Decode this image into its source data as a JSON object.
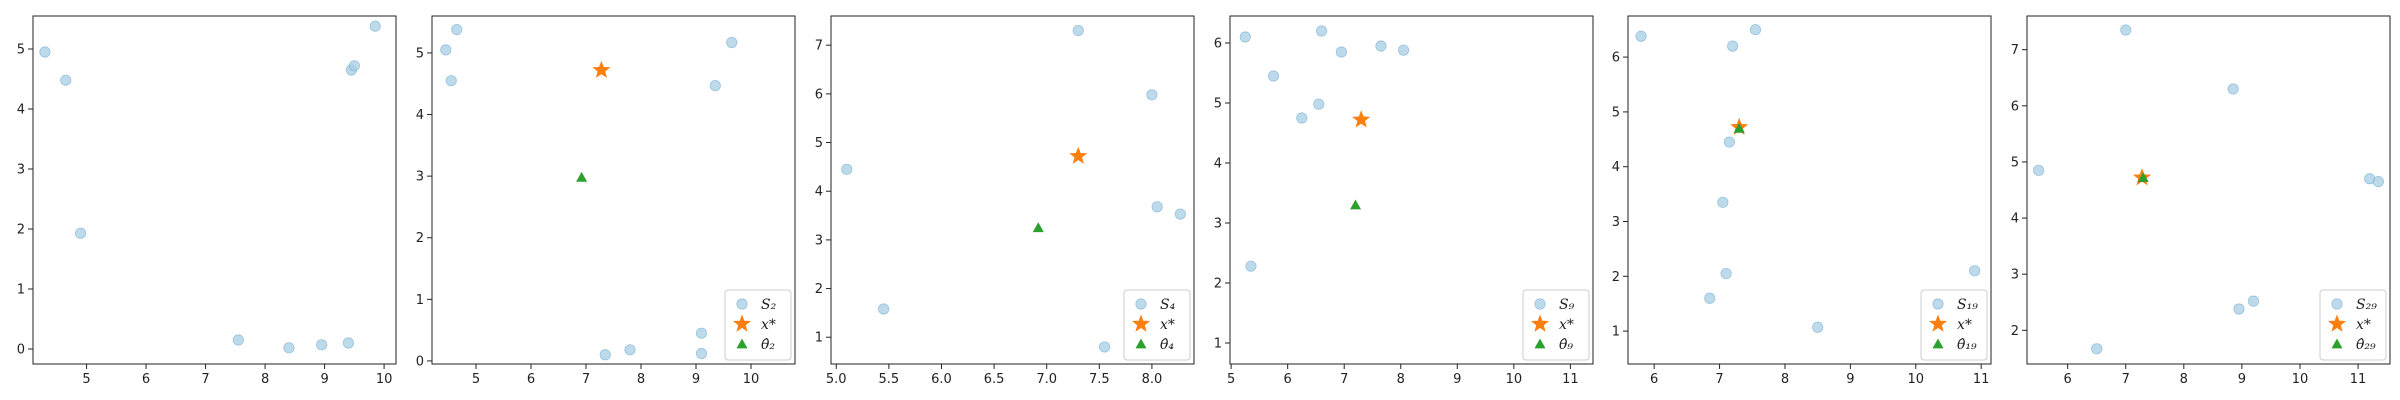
{
  "colors": {
    "samples": "#a6cee3",
    "samples_edge": "#6fa8cf",
    "star": "#ff7f0e",
    "triangle": "#2ca02c",
    "axes": "#222222"
  },
  "chart_data": [
    {
      "type": "scatter",
      "xlim": [
        4.1,
        10.2
      ],
      "ylim": [
        -0.25,
        5.55
      ],
      "xticks": [
        5,
        6,
        7,
        8,
        9,
        10
      ],
      "yticks": [
        0,
        1,
        2,
        3,
        4,
        5
      ],
      "grid": false,
      "series": [
        {
          "role": "samples",
          "marker": "circle",
          "points": [
            [
              4.3,
              4.95
            ],
            [
              4.65,
              4.48
            ],
            [
              4.9,
              1.93
            ],
            [
              7.55,
              0.15
            ],
            [
              8.4,
              0.02
            ],
            [
              8.95,
              0.07
            ],
            [
              9.4,
              0.1
            ],
            [
              9.45,
              4.65
            ],
            [
              9.5,
              4.72
            ],
            [
              9.85,
              5.38
            ]
          ]
        }
      ]
    },
    {
      "type": "scatter",
      "xlim": [
        4.2,
        10.8
      ],
      "ylim": [
        -0.05,
        5.6
      ],
      "xticks": [
        5,
        6,
        7,
        8,
        9,
        10
      ],
      "yticks": [
        0,
        1,
        2,
        3,
        4,
        5
      ],
      "grid": false,
      "legend_position": "bottom-right",
      "series": [
        {
          "name": "S₂",
          "role": "samples",
          "marker": "circle",
          "points": [
            [
              4.45,
              5.05
            ],
            [
              4.55,
              4.55
            ],
            [
              4.65,
              5.38
            ],
            [
              7.35,
              0.1
            ],
            [
              7.8,
              0.18
            ],
            [
              9.1,
              0.12
            ],
            [
              9.1,
              0.45
            ],
            [
              9.35,
              4.47
            ],
            [
              9.65,
              5.17
            ]
          ]
        },
        {
          "name": "x*",
          "role": "target",
          "marker": "star",
          "points": [
            [
              7.28,
              4.72
            ]
          ]
        },
        {
          "name": "θ̂₂",
          "role": "estimate",
          "marker": "triangle",
          "points": [
            [
              6.92,
              2.98
            ]
          ]
        }
      ]
    },
    {
      "type": "scatter",
      "xlim": [
        4.95,
        8.4
      ],
      "ylim": [
        0.45,
        7.6
      ],
      "xticks": [
        5.0,
        5.5,
        6.0,
        6.5,
        7.0,
        7.5,
        8.0
      ],
      "yticks": [
        1,
        2,
        3,
        4,
        5,
        6,
        7
      ],
      "grid": false,
      "legend_position": "bottom-right",
      "series": [
        {
          "name": "S₄",
          "role": "samples",
          "marker": "circle",
          "points": [
            [
              5.1,
              4.45
            ],
            [
              5.45,
              1.58
            ],
            [
              7.3,
              7.3
            ],
            [
              7.55,
              0.8
            ],
            [
              8.0,
              5.98
            ],
            [
              8.05,
              3.68
            ],
            [
              8.27,
              3.53
            ]
          ]
        },
        {
          "name": "x*",
          "role": "target",
          "marker": "star",
          "points": [
            [
              7.3,
              4.72
            ]
          ]
        },
        {
          "name": "θ̂₄",
          "role": "estimate",
          "marker": "triangle",
          "points": [
            [
              6.92,
              3.25
            ]
          ]
        }
      ]
    },
    {
      "type": "scatter",
      "xlim": [
        4.98,
        11.4
      ],
      "ylim": [
        0.65,
        6.45
      ],
      "xticks": [
        5,
        6,
        7,
        8,
        9,
        10,
        11
      ],
      "yticks": [
        1,
        2,
        3,
        4,
        5,
        6
      ],
      "grid": false,
      "legend_position": "bottom-right",
      "series": [
        {
          "name": "S₉",
          "role": "samples",
          "marker": "circle",
          "points": [
            [
              5.25,
              6.1
            ],
            [
              5.35,
              2.28
            ],
            [
              5.75,
              5.45
            ],
            [
              6.25,
              4.75
            ],
            [
              6.55,
              4.98
            ],
            [
              6.6,
              6.2
            ],
            [
              6.95,
              5.85
            ],
            [
              7.65,
              5.95
            ],
            [
              8.05,
              5.88
            ]
          ]
        },
        {
          "name": "x*",
          "role": "target",
          "marker": "star",
          "points": [
            [
              7.3,
              4.72
            ]
          ]
        },
        {
          "name": "θ̂₉",
          "role": "estimate",
          "marker": "triangle",
          "points": [
            [
              7.2,
              3.3
            ]
          ]
        }
      ]
    },
    {
      "type": "scatter",
      "xlim": [
        5.6,
        11.15
      ],
      "ylim": [
        0.4,
        6.75
      ],
      "xticks": [
        6,
        7,
        8,
        9,
        10,
        11
      ],
      "yticks": [
        1,
        2,
        3,
        4,
        5,
        6
      ],
      "grid": false,
      "legend_position": "bottom-right",
      "series": [
        {
          "name": "S₁₉",
          "role": "samples",
          "marker": "circle",
          "points": [
            [
              5.8,
              6.38
            ],
            [
              6.85,
              1.6
            ],
            [
              7.05,
              3.35
            ],
            [
              7.1,
              2.05
            ],
            [
              7.15,
              4.45
            ],
            [
              7.2,
              6.2
            ],
            [
              7.55,
              6.5
            ],
            [
              8.5,
              1.07
            ],
            [
              10.9,
              2.1
            ]
          ]
        },
        {
          "name": "x*",
          "role": "target",
          "marker": "star",
          "points": [
            [
              7.3,
              4.72
            ]
          ]
        },
        {
          "name": "θ̂₁₉",
          "role": "estimate",
          "marker": "triangle",
          "points": [
            [
              7.3,
              4.7
            ]
          ]
        }
      ]
    },
    {
      "type": "scatter",
      "xlim": [
        5.3,
        11.55
      ],
      "ylim": [
        1.4,
        7.6
      ],
      "xticks": [
        6,
        7,
        8,
        9,
        10,
        11
      ],
      "yticks": [
        2,
        3,
        4,
        5,
        6,
        7
      ],
      "grid": false,
      "legend_position": "bottom-right",
      "series": [
        {
          "name": "S₂₉",
          "role": "samples",
          "marker": "circle",
          "points": [
            [
              5.5,
              4.85
            ],
            [
              6.5,
              1.67
            ],
            [
              7.0,
              7.35
            ],
            [
              8.85,
              6.3
            ],
            [
              8.95,
              2.38
            ],
            [
              9.2,
              2.52
            ],
            [
              11.2,
              4.7
            ],
            [
              11.35,
              4.65
            ]
          ]
        },
        {
          "name": "x*",
          "role": "target",
          "marker": "star",
          "points": [
            [
              7.28,
              4.72
            ]
          ]
        },
        {
          "name": "θ̂₂₉",
          "role": "estimate",
          "marker": "triangle",
          "points": [
            [
              7.3,
              4.72
            ]
          ]
        }
      ]
    }
  ]
}
